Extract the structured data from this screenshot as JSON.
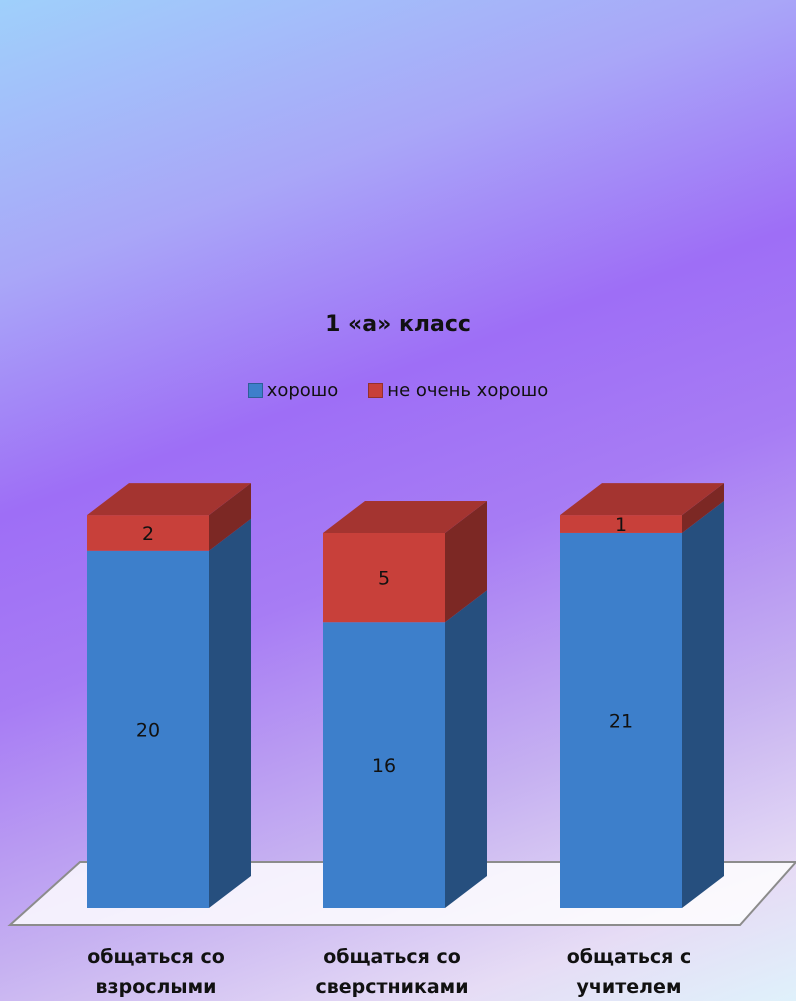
{
  "chart_data": {
    "type": "bar",
    "stacked": true,
    "title": "1 «а» класс",
    "categories": [
      "общаться со взрослыми",
      "общаться со сверстниками",
      "общаться с учителем"
    ],
    "category_lines": [
      [
        "общаться со",
        "взрослыми"
      ],
      [
        "общаться со",
        "сверстниками"
      ],
      [
        "общаться с",
        "учителем"
      ]
    ],
    "series": [
      {
        "name": "хорошо",
        "values": [
          20,
          16,
          21
        ],
        "color": "#3d7fcb"
      },
      {
        "name": "не очень хорошо",
        "values": [
          2,
          5,
          1
        ],
        "color": "#c8403a"
      }
    ],
    "legend_position": "top",
    "grid": false,
    "three_d": true
  }
}
